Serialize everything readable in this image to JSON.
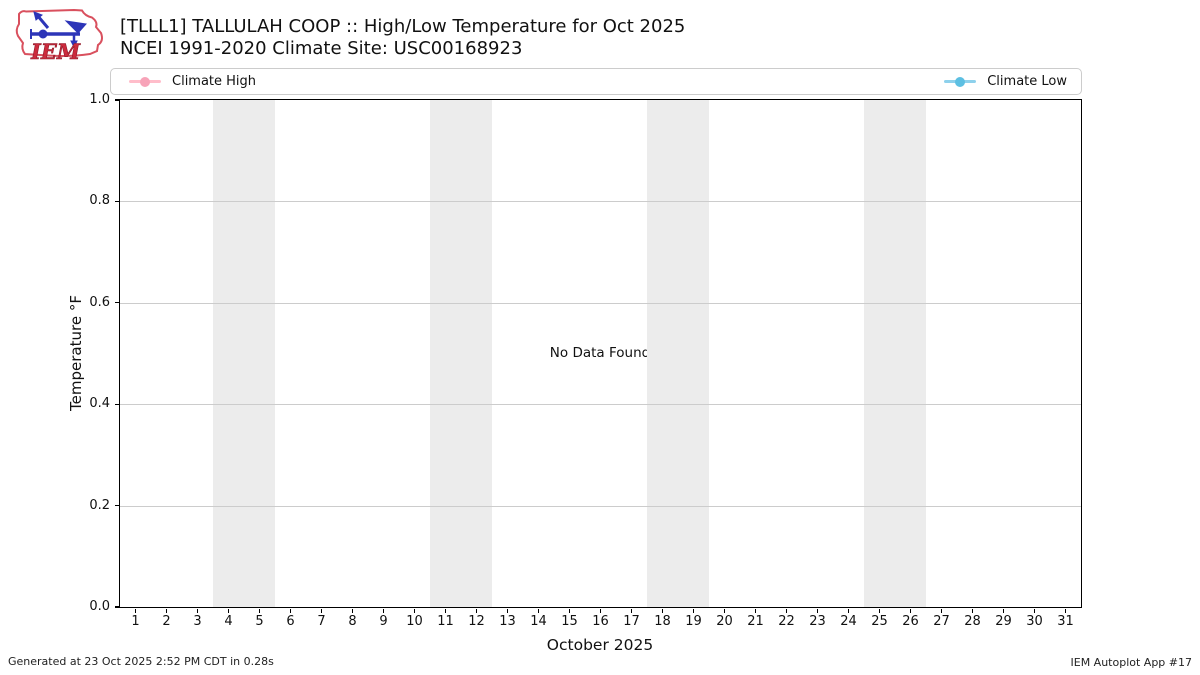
{
  "header": {
    "title_line1": "[TLLL1] TALLULAH COOP :: High/Low Temperature for Oct 2025",
    "title_line2": "NCEI 1991-2020 Climate Site: USC00168923",
    "logo_text": "IEM"
  },
  "legend": {
    "items": [
      {
        "label": "Climate High",
        "line_color": "#ffbdca",
        "marker_color": "#f7a3b8",
        "position": "left"
      },
      {
        "label": "Climate Low",
        "line_color": "#8ed1ec",
        "marker_color": "#5cbfe2",
        "position": "right"
      }
    ]
  },
  "chart_data": {
    "type": "line",
    "title": "[TLLL1] TALLULAH COOP :: High/Low Temperature for Oct 2025",
    "subtitle": "NCEI 1991-2020 Climate Site: USC00168923",
    "xlabel": "October 2025",
    "ylabel": "Temperature °F",
    "xlim": [
      0.5,
      31.5
    ],
    "ylim": [
      0.0,
      1.0
    ],
    "xticks": [
      1,
      2,
      3,
      4,
      5,
      6,
      7,
      8,
      9,
      10,
      11,
      12,
      13,
      14,
      15,
      16,
      17,
      18,
      19,
      20,
      21,
      22,
      23,
      24,
      25,
      26,
      27,
      28,
      29,
      30,
      31
    ],
    "ytick_labels": [
      "0.0",
      "0.2",
      "0.4",
      "0.6",
      "0.8",
      "1.0"
    ],
    "ytick_values": [
      0.0,
      0.2,
      0.4,
      0.6,
      0.8,
      1.0
    ],
    "grid": "horizontal",
    "gridline_color": "#cccccc",
    "legend_position": "top",
    "series": [
      {
        "name": "Climate High",
        "color": "#ffbdca",
        "x": [],
        "values": []
      },
      {
        "name": "Climate Low",
        "color": "#8ed1ec",
        "x": [],
        "values": []
      }
    ],
    "annotation": "No Data Found",
    "weekend_bands": [
      [
        3.5,
        5.5
      ],
      [
        10.5,
        12.5
      ],
      [
        17.5,
        19.5
      ],
      [
        24.5,
        26.5
      ]
    ],
    "band_color": "#ececec"
  },
  "footer": {
    "generated": "Generated at 23 Oct 2025 2:52 PM CDT in 0.28s",
    "app": "IEM Autoplot App #17"
  }
}
